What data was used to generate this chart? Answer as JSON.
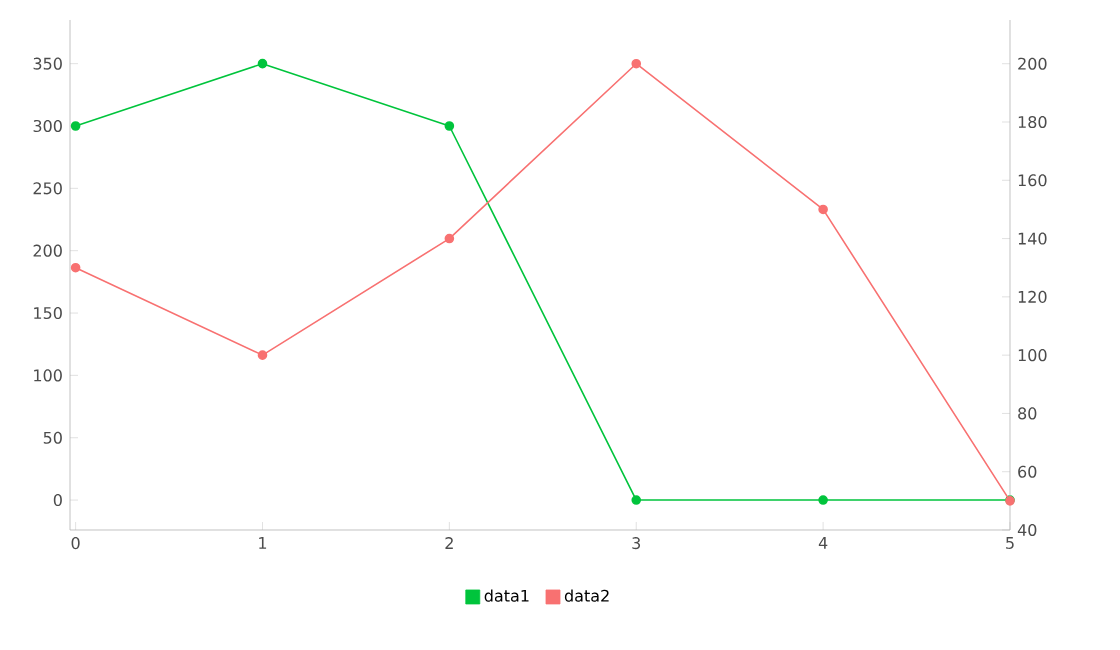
{
  "chart_data": {
    "type": "line",
    "x": [
      0,
      1,
      2,
      3,
      4,
      5
    ],
    "xlim": [
      -0.03,
      5
    ],
    "xticks": [
      0,
      1,
      2,
      3,
      4,
      5
    ],
    "ylim": [
      -24,
      385
    ],
    "yticks": [
      0,
      50,
      100,
      150,
      200,
      250,
      300,
      350
    ],
    "y2lim": [
      40,
      215
    ],
    "y2ticks": [
      40,
      60,
      80,
      100,
      120,
      140,
      160,
      180,
      200
    ],
    "series": [
      {
        "name": "data1",
        "color": "#00c43c",
        "values": [
          300,
          350,
          300,
          0,
          0,
          0
        ]
      },
      {
        "name": "data2",
        "color": "#f87171",
        "values": [
          130,
          100,
          140,
          200,
          150,
          50
        ],
        "axis": "y2"
      }
    ],
    "marker": "circle",
    "legend": "bottom",
    "grid": false
  }
}
